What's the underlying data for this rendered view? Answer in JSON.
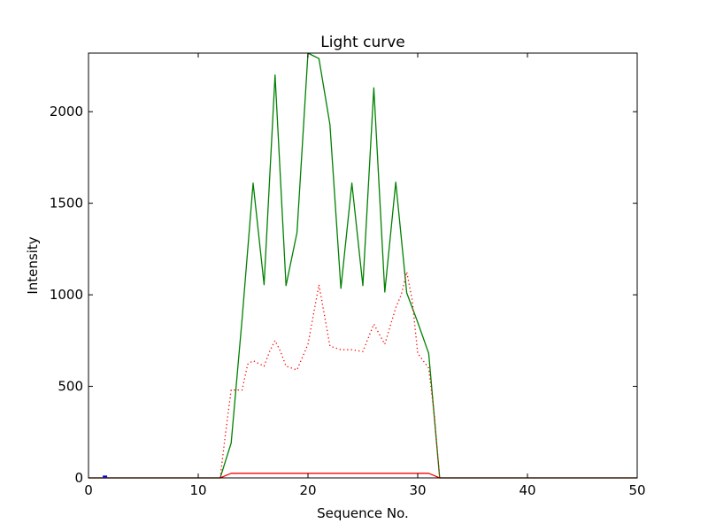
{
  "chart_data": {
    "type": "line",
    "title": "Light curve",
    "xlabel": "Sequence No.",
    "ylabel": "Intensity",
    "xlim": [
      0,
      50
    ],
    "ylim": [
      0,
      2320
    ],
    "xticks": [
      0,
      10,
      20,
      30,
      40,
      50
    ],
    "yticks": [
      0,
      500,
      1000,
      1500,
      2000
    ],
    "grid": false,
    "series": [
      {
        "color": "#008000",
        "style": "solid",
        "x": [
          0,
          1,
          2,
          3,
          4,
          5,
          6,
          7,
          8,
          9,
          10,
          11,
          12,
          13,
          14,
          15,
          16,
          17,
          18,
          19,
          20,
          21,
          22,
          23,
          24,
          25,
          26,
          27,
          28,
          29,
          30,
          31,
          32,
          33,
          34,
          35,
          36,
          37,
          38,
          39,
          40,
          41,
          42,
          43,
          44,
          45,
          46,
          47,
          48,
          49,
          50
        ],
        "y": [
          0,
          0,
          0,
          0,
          0,
          0,
          0,
          0,
          0,
          0,
          0,
          0,
          0,
          190,
          870,
          1610,
          1055,
          2200,
          1050,
          1340,
          2320,
          2290,
          1930,
          1035,
          1610,
          1050,
          2130,
          1015,
          1615,
          1010,
          850,
          680,
          0,
          0,
          0,
          0,
          0,
          0,
          0,
          0,
          0,
          0,
          0,
          0,
          0,
          0,
          0,
          0,
          0,
          0,
          0
        ]
      },
      {
        "color": "#ff0000",
        "style": "dotted",
        "x": [
          12,
          12.5,
          13,
          14,
          14.5,
          15,
          16,
          16.5,
          17,
          17.5,
          18,
          19,
          20,
          21,
          22,
          23,
          24,
          25,
          26,
          27,
          28,
          28.5,
          29,
          29.5,
          30,
          31,
          31.5,
          32
        ],
        "y": [
          0,
          250,
          480,
          480,
          620,
          640,
          610,
          690,
          750,
          690,
          610,
          590,
          730,
          1055,
          720,
          700,
          700,
          690,
          840,
          730,
          930,
          1000,
          1125,
          970,
          680,
          600,
          350,
          0
        ]
      },
      {
        "color": "#ff0000",
        "style": "solid",
        "x": [
          0,
          12,
          13,
          31,
          32,
          50
        ],
        "y": [
          0,
          0,
          25,
          25,
          0,
          0
        ]
      },
      {
        "color": "#0000ff",
        "style": "solid",
        "x": [
          1.3,
          1.7
        ],
        "y": [
          8,
          8
        ]
      }
    ]
  }
}
